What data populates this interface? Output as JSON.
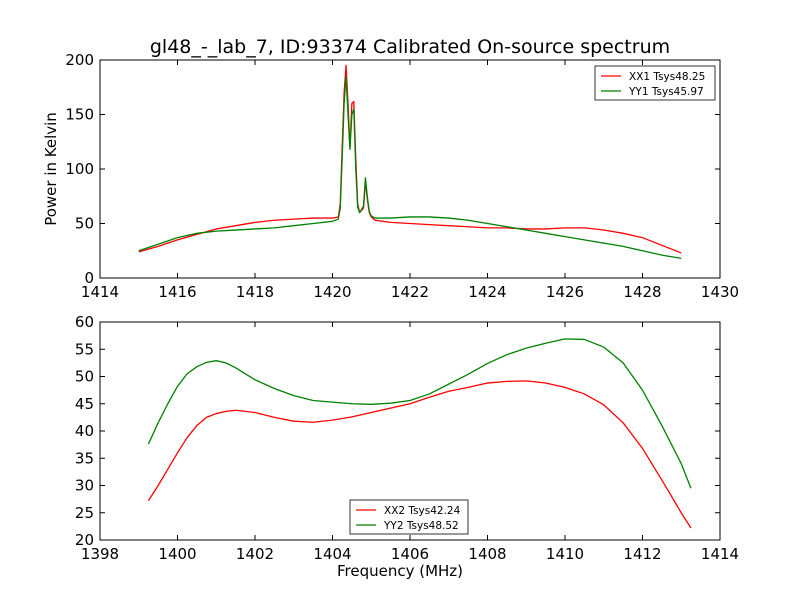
{
  "figure": {
    "title": "gl48_-_lab_7, ID:93374 Calibrated On-source spectrum"
  },
  "chart_data": [
    {
      "type": "line",
      "title": "gl48_-_lab_7, ID:93374 Calibrated On-source spectrum",
      "xlabel": "",
      "ylabel": "Power in Kelvin",
      "xlim": [
        1414,
        1430
      ],
      "ylim": [
        0,
        200
      ],
      "xticks": [
        "1414",
        "1416",
        "1418",
        "1420",
        "1422",
        "1424",
        "1426",
        "1428",
        "1430"
      ],
      "yticks": [
        "0",
        "50",
        "100",
        "150",
        "200"
      ],
      "legend_position": "top-right",
      "series": [
        {
          "name": "XX1 Tsys48.25",
          "color": "#ff0000",
          "x": [
            1415.0,
            1415.5,
            1416.0,
            1416.5,
            1417.0,
            1417.5,
            1418.0,
            1418.5,
            1419.0,
            1419.5,
            1420.0,
            1420.15,
            1420.2,
            1420.25,
            1420.3,
            1420.35,
            1420.4,
            1420.45,
            1420.5,
            1420.55,
            1420.6,
            1420.65,
            1420.7,
            1420.8,
            1420.85,
            1420.9,
            1420.95,
            1421.0,
            1421.1,
            1421.5,
            1422.0,
            1422.5,
            1423.0,
            1423.5,
            1424.0,
            1424.5,
            1425.0,
            1425.5,
            1426.0,
            1426.5,
            1427.0,
            1427.5,
            1428.0,
            1428.5,
            1429.0
          ],
          "y": [
            24,
            29,
            35,
            40,
            45,
            48,
            51,
            53,
            54,
            55,
            55,
            56,
            68,
            120,
            170,
            195,
            160,
            120,
            160,
            162,
            110,
            68,
            60,
            64,
            88,
            72,
            60,
            56,
            53,
            51,
            50,
            49,
            48,
            47,
            46,
            46,
            45,
            45,
            46,
            46,
            44,
            41,
            37,
            30,
            23
          ]
        },
        {
          "name": "YY1 Tsys45.97",
          "color": "#008000",
          "x": [
            1415.0,
            1415.5,
            1416.0,
            1416.5,
            1417.0,
            1417.5,
            1418.0,
            1418.5,
            1419.0,
            1419.5,
            1420.0,
            1420.15,
            1420.2,
            1420.25,
            1420.3,
            1420.35,
            1420.4,
            1420.45,
            1420.5,
            1420.55,
            1420.6,
            1420.65,
            1420.7,
            1420.8,
            1420.85,
            1420.9,
            1420.95,
            1421.0,
            1421.1,
            1421.5,
            1422.0,
            1422.5,
            1423.0,
            1423.5,
            1424.0,
            1424.5,
            1425.0,
            1425.5,
            1426.0,
            1426.5,
            1427.0,
            1427.5,
            1428.0,
            1428.5,
            1429.0
          ],
          "y": [
            25,
            31,
            37,
            41,
            43,
            44,
            45,
            46,
            48,
            50,
            52,
            54,
            64,
            110,
            160,
            185,
            150,
            118,
            150,
            155,
            100,
            65,
            60,
            66,
            92,
            74,
            61,
            57,
            55,
            55,
            56,
            56,
            55,
            53,
            50,
            47,
            44,
            41,
            38,
            35,
            32,
            29,
            25,
            21,
            18
          ]
        }
      ]
    },
    {
      "type": "line",
      "title": "",
      "xlabel": "Frequency (MHz)",
      "ylabel": "",
      "xlim": [
        1398,
        1414
      ],
      "ylim": [
        20,
        60
      ],
      "xticks": [
        "1398",
        "1400",
        "1402",
        "1404",
        "1406",
        "1408",
        "1410",
        "1412",
        "1414"
      ],
      "yticks": [
        "20",
        "25",
        "30",
        "35",
        "40",
        "45",
        "50",
        "55",
        "60"
      ],
      "legend_position": "bottom-center",
      "series": [
        {
          "name": "XX2 Tsys42.24",
          "color": "#ff0000",
          "x": [
            1399.25,
            1399.5,
            1399.75,
            1400.0,
            1400.25,
            1400.5,
            1400.75,
            1401.0,
            1401.25,
            1401.5,
            1401.75,
            1402.0,
            1402.5,
            1403.0,
            1403.5,
            1404.0,
            1404.5,
            1405.0,
            1405.5,
            1406.0,
            1406.5,
            1407.0,
            1407.5,
            1408.0,
            1408.5,
            1409.0,
            1409.5,
            1410.0,
            1410.5,
            1411.0,
            1411.5,
            1412.0,
            1412.5,
            1413.0,
            1413.25
          ],
          "y": [
            27.2,
            30,
            33,
            36,
            38.8,
            41,
            42.5,
            43.2,
            43.6,
            43.8,
            43.6,
            43.4,
            42.5,
            41.8,
            41.6,
            42,
            42.6,
            43.4,
            44.2,
            45,
            46.2,
            47.3,
            48,
            48.8,
            49.1,
            49.2,
            48.8,
            48,
            46.8,
            44.8,
            41.5,
            36.8,
            31,
            25,
            22.2
          ]
        },
        {
          "name": "YY2 Tsys48.52",
          "color": "#008000",
          "x": [
            1399.25,
            1399.5,
            1399.75,
            1400.0,
            1400.25,
            1400.5,
            1400.75,
            1401.0,
            1401.25,
            1401.5,
            1401.75,
            1402.0,
            1402.5,
            1403.0,
            1403.5,
            1404.0,
            1404.5,
            1405.0,
            1405.5,
            1406.0,
            1406.5,
            1407.0,
            1407.5,
            1408.0,
            1408.5,
            1409.0,
            1409.5,
            1410.0,
            1410.5,
            1411.0,
            1411.5,
            1412.0,
            1412.5,
            1413.0,
            1413.25
          ],
          "y": [
            37.6,
            41.5,
            45,
            48.2,
            50.5,
            51.8,
            52.6,
            52.9,
            52.5,
            51.6,
            50.5,
            49.4,
            47.8,
            46.5,
            45.6,
            45.3,
            45,
            44.9,
            45.1,
            45.6,
            46.8,
            48.6,
            50.4,
            52.4,
            54,
            55.2,
            56.1,
            56.9,
            56.8,
            55.4,
            52.5,
            47.5,
            41,
            34,
            29.5
          ]
        }
      ]
    }
  ]
}
